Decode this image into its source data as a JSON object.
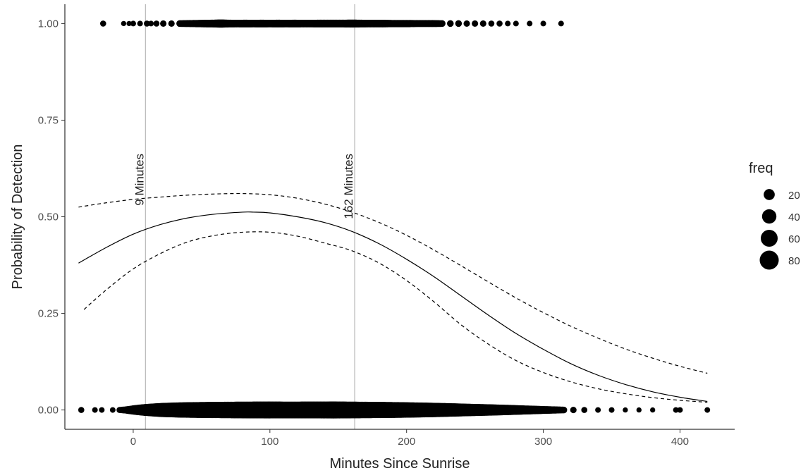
{
  "chart_data": {
    "type": "scatter",
    "title": "",
    "xlabel": "Minutes Since Sunrise",
    "ylabel": "Probability of Detection",
    "xlim": [
      -50,
      440
    ],
    "ylim": [
      -0.05,
      1.05
    ],
    "x_ticks": [
      0,
      100,
      200,
      300,
      400
    ],
    "x_tick_labels": [
      "0",
      "100",
      "200",
      "300",
      "400"
    ],
    "y_ticks": [
      0,
      0.25,
      0.5,
      0.75,
      1.0
    ],
    "y_tick_labels": [
      "0.00",
      "0.25",
      "0.50",
      "0.75",
      "1.00"
    ],
    "grid": false,
    "legend": {
      "title": "freq",
      "placement": "right",
      "entries": [
        {
          "label": "20",
          "value": 20
        },
        {
          "label": "40",
          "value": 40
        },
        {
          "label": "60",
          "value": 60
        },
        {
          "label": "80",
          "value": 80
        }
      ]
    },
    "reference_lines": [
      {
        "x": 9,
        "label": "9 Minutes"
      },
      {
        "x": 162,
        "label": "162 Minutes"
      }
    ],
    "points": {
      "y1": {
        "x": [
          -22,
          -7,
          -3,
          0,
          5,
          10,
          13,
          17,
          22,
          28,
          34,
          40,
          46,
          52,
          58,
          64,
          70,
          76,
          82,
          88,
          94,
          100,
          106,
          112,
          118,
          124,
          130,
          136,
          142,
          148,
          154,
          160,
          166,
          172,
          178,
          184,
          190,
          196,
          202,
          208,
          214,
          220,
          226,
          232,
          238,
          244,
          250,
          256,
          262,
          268,
          274,
          280,
          290,
          300,
          313
        ],
        "freq": [
          4,
          2,
          2,
          3,
          3,
          4,
          3,
          4,
          5,
          5,
          6,
          7,
          8,
          9,
          10,
          12,
          10,
          9,
          10,
          9,
          10,
          9,
          10,
          9,
          10,
          9,
          9,
          10,
          10,
          10,
          10,
          11,
          10,
          9,
          9,
          9,
          8,
          8,
          8,
          7,
          7,
          7,
          6,
          6,
          6,
          5,
          5,
          5,
          4,
          4,
          3,
          3,
          3,
          3,
          3
        ]
      },
      "y0": {
        "x": [
          -38,
          -28,
          -23,
          -15,
          -10,
          -5,
          -1,
          4,
          9,
          15,
          21,
          28,
          35,
          42,
          49,
          56,
          63,
          70,
          77,
          84,
          91,
          98,
          105,
          112,
          119,
          126,
          133,
          140,
          147,
          154,
          161,
          168,
          175,
          182,
          189,
          196,
          203,
          210,
          217,
          224,
          231,
          238,
          245,
          252,
          259,
          266,
          273,
          280,
          287,
          294,
          301,
          308,
          315,
          322,
          330,
          340,
          350,
          360,
          370,
          380,
          397,
          400,
          420
        ],
        "freq": [
          4,
          3,
          3,
          3,
          4,
          8,
          15,
          25,
          35,
          45,
          55,
          62,
          68,
          72,
          75,
          78,
          80,
          82,
          84,
          85,
          86,
          87,
          86,
          85,
          85,
          86,
          86,
          87,
          88,
          86,
          84,
          82,
          80,
          78,
          75,
          72,
          68,
          64,
          60,
          55,
          50,
          45,
          40,
          36,
          32,
          28,
          24,
          20,
          16,
          13,
          10,
          8,
          6,
          5,
          4,
          3,
          3,
          2,
          2,
          2,
          3,
          3,
          3
        ]
      }
    },
    "series": [
      {
        "style": "solid",
        "x": [
          -40,
          -20,
          0,
          20,
          40,
          60,
          80,
          88,
          100,
          120,
          140,
          160,
          180,
          200,
          220,
          240,
          260,
          280,
          300,
          320,
          340,
          360,
          380,
          400,
          420
        ],
        "y": [
          0.38,
          0.42,
          0.455,
          0.48,
          0.497,
          0.507,
          0.512,
          0.512,
          0.51,
          0.5,
          0.485,
          0.462,
          0.43,
          0.39,
          0.345,
          0.295,
          0.245,
          0.198,
          0.157,
          0.12,
          0.09,
          0.066,
          0.047,
          0.033,
          0.022
        ]
      },
      {
        "style": "dashed",
        "x": [
          -40,
          -20,
          0,
          20,
          40,
          60,
          80,
          100,
          120,
          140,
          160,
          180,
          200,
          220,
          240,
          260,
          280,
          300,
          320,
          340,
          360,
          380,
          400,
          420
        ],
        "y": [
          0.525,
          0.536,
          0.545,
          0.551,
          0.556,
          0.559,
          0.56,
          0.557,
          0.548,
          0.533,
          0.512,
          0.485,
          0.452,
          0.414,
          0.373,
          0.331,
          0.29,
          0.252,
          0.217,
          0.186,
          0.158,
          0.134,
          0.113,
          0.095
        ]
      },
      {
        "style": "dashed",
        "x": [
          -36,
          -20,
          0,
          20,
          40,
          60,
          80,
          100,
          120,
          140,
          160,
          180,
          200,
          220,
          240,
          260,
          280,
          300,
          320,
          340,
          360,
          380,
          400,
          420
        ],
        "y": [
          0.26,
          0.31,
          0.365,
          0.405,
          0.435,
          0.452,
          0.46,
          0.46,
          0.45,
          0.432,
          0.412,
          0.38,
          0.335,
          0.28,
          0.22,
          0.17,
          0.128,
          0.097,
          0.073,
          0.055,
          0.042,
          0.032,
          0.025,
          0.02
        ]
      }
    ]
  }
}
